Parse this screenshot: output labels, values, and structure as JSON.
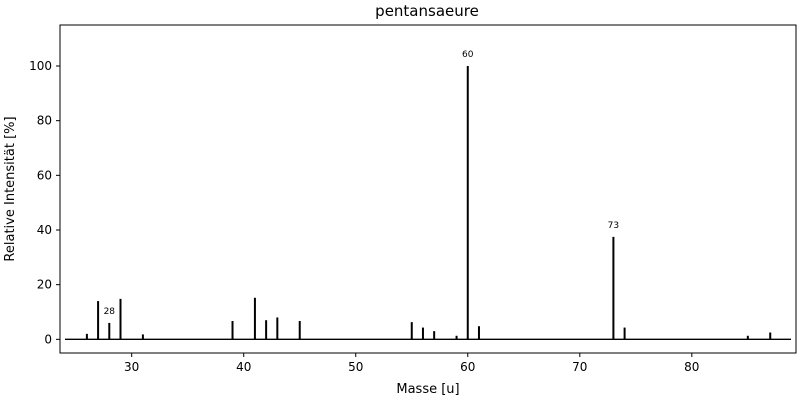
{
  "chart_data": {
    "type": "bar",
    "title": "pentansaeure",
    "xlabel": "Masse [u]",
    "ylabel": "Relative Intensität [%]",
    "xlim": [
      23.6,
      89.3
    ],
    "ylim": [
      -5,
      115
    ],
    "xticks": [
      30,
      40,
      50,
      60,
      70,
      80
    ],
    "yticks": [
      0,
      20,
      40,
      60,
      80,
      100
    ],
    "baseline": 0,
    "grid": false,
    "legend": false,
    "peaks": [
      {
        "mz": 26,
        "intensity": 2.0
      },
      {
        "mz": 27,
        "intensity": 14.0
      },
      {
        "mz": 28,
        "intensity": 6.0,
        "label": "28"
      },
      {
        "mz": 29,
        "intensity": 14.8
      },
      {
        "mz": 31,
        "intensity": 1.8
      },
      {
        "mz": 39,
        "intensity": 6.7
      },
      {
        "mz": 41,
        "intensity": 15.2
      },
      {
        "mz": 42,
        "intensity": 7.0
      },
      {
        "mz": 43,
        "intensity": 8.0
      },
      {
        "mz": 45,
        "intensity": 6.7
      },
      {
        "mz": 55,
        "intensity": 6.3
      },
      {
        "mz": 56,
        "intensity": 4.3
      },
      {
        "mz": 57,
        "intensity": 3.0
      },
      {
        "mz": 59,
        "intensity": 1.3
      },
      {
        "mz": 60,
        "intensity": 100.0,
        "label": "60"
      },
      {
        "mz": 61,
        "intensity": 4.8
      },
      {
        "mz": 73,
        "intensity": 37.5,
        "label": "73"
      },
      {
        "mz": 74,
        "intensity": 4.3
      },
      {
        "mz": 85,
        "intensity": 1.3
      },
      {
        "mz": 87,
        "intensity": 2.5
      }
    ]
  }
}
